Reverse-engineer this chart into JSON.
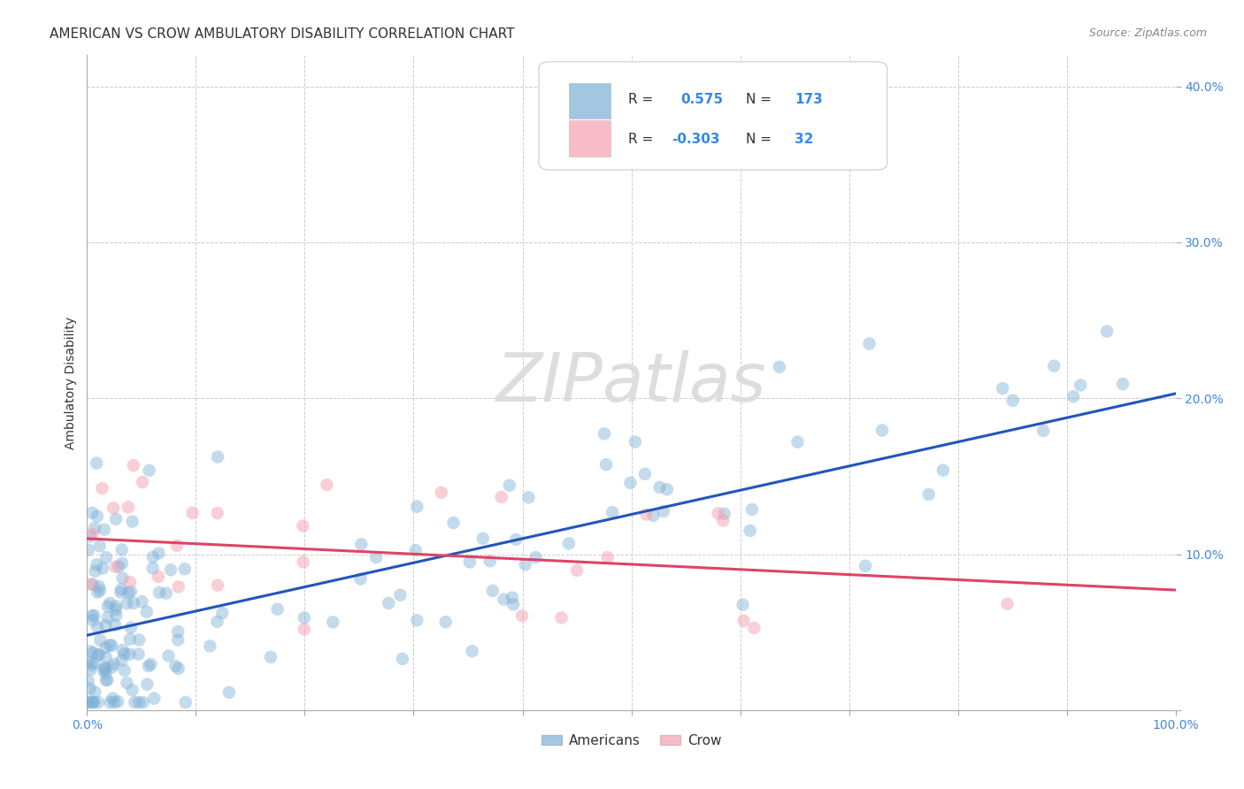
{
  "title": "AMERICAN VS CROW AMBULATORY DISABILITY CORRELATION CHART",
  "source": "Source: ZipAtlas.com",
  "ylabel": "Ambulatory Disability",
  "xlim": [
    0.0,
    1.0
  ],
  "ylim": [
    0.0,
    0.42
  ],
  "grid_color": "#cccccc",
  "background_color": "#ffffff",
  "blue_color": "#7db0d5",
  "pink_color": "#f4a0b0",
  "blue_line_color": "#2255bb",
  "pink_line_color": "#dd4466",
  "tick_color": "#4488dd",
  "title_color": "#333333",
  "source_color": "#888888",
  "ylabel_color": "#333333",
  "watermark": "ZIPatlas",
  "watermark_color": "#dddddd",
  "title_fontsize": 11,
  "source_fontsize": 9,
  "tick_fontsize": 10,
  "ylabel_fontsize": 10,
  "watermark_fontsize": 55,
  "blue_R": 0.575,
  "blue_N": 173,
  "blue_intercept": 0.048,
  "blue_slope": 0.155,
  "pink_R": -0.303,
  "pink_N": 32,
  "pink_intercept": 0.11,
  "pink_slope": -0.033,
  "legend_R1": "R = ",
  "legend_V1": "0.575",
  "legend_N1_label": "N = ",
  "legend_N1_val": "173",
  "legend_R2": "R = ",
  "legend_V2": "-0.303",
  "legend_N2_label": "N = ",
  "legend_N2_val": "32",
  "legend_text_color": "#333333",
  "legend_val_color": "#3388ee"
}
